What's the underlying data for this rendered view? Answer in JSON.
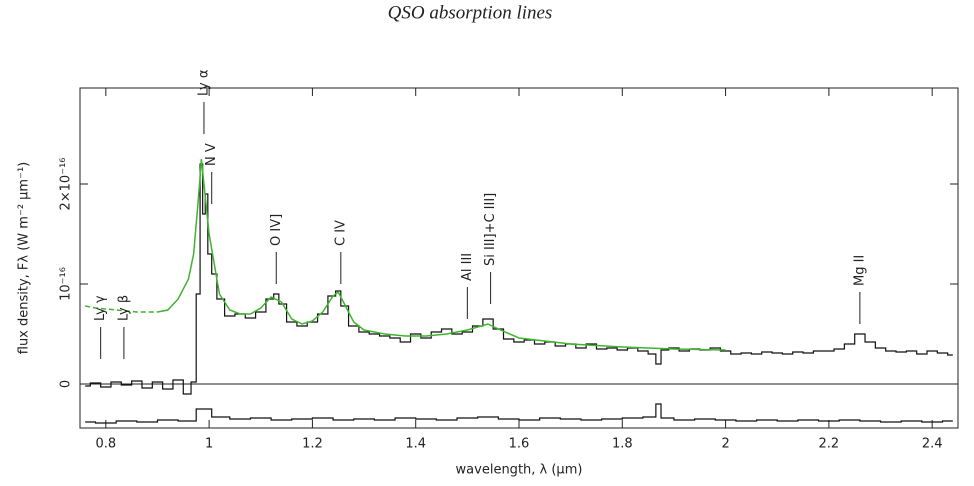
{
  "chart_data": {
    "type": "line",
    "title": "QSO absorption lines",
    "xlabel": "wavelength, λ (μm)",
    "ylabel": "flux density, Fλ (W m⁻² μm⁻¹)",
    "xlim": [
      0.75,
      2.45
    ],
    "ylim": [
      -4.4e-17,
      2.96e-16
    ],
    "xticks": [
      0.8,
      1,
      1.2,
      1.4,
      1.6,
      1.8,
      2,
      2.2,
      2.4
    ],
    "yticks": [
      0,
      {
        "value": 1e-16,
        "label": "10⁻¹⁶"
      },
      {
        "value": 2e-16,
        "label": "2×10⁻¹⁶"
      }
    ],
    "zero_line": true,
    "series": [
      {
        "color": "#111111",
        "linestyle": "steps",
        "x": [
          0.76,
          0.78,
          0.8,
          0.82,
          0.84,
          0.86,
          0.88,
          0.9,
          0.92,
          0.94,
          0.96,
          0.97,
          0.98,
          0.985,
          0.99,
          0.995,
          1.0,
          1.01,
          1.02,
          1.04,
          1.06,
          1.08,
          1.1,
          1.12,
          1.13,
          1.14,
          1.16,
          1.18,
          1.2,
          1.22,
          1.24,
          1.25,
          1.26,
          1.28,
          1.3,
          1.32,
          1.34,
          1.36,
          1.38,
          1.4,
          1.42,
          1.44,
          1.46,
          1.48,
          1.5,
          1.52,
          1.54,
          1.56,
          1.58,
          1.6,
          1.62,
          1.64,
          1.66,
          1.68,
          1.7,
          1.72,
          1.74,
          1.76,
          1.78,
          1.8,
          1.82,
          1.84,
          1.86,
          1.87,
          1.88,
          1.9,
          1.92,
          1.94,
          1.96,
          1.98,
          2.0,
          2.02,
          2.04,
          2.06,
          2.08,
          2.1,
          2.12,
          2.14,
          2.16,
          2.18,
          2.2,
          2.22,
          2.24,
          2.26,
          2.28,
          2.3,
          2.32,
          2.34,
          2.36,
          2.38,
          2.4,
          2.42,
          2.44
        ],
        "values": [
          -2e-18,
          1e-18,
          -3e-18,
          2e-18,
          -1e-18,
          3e-18,
          -4e-18,
          2e-18,
          -5e-18,
          4e-18,
          -1e-17,
          2e-18,
          9e-17,
          2.2e-16,
          1.7e-16,
          1.9e-16,
          1.3e-16,
          1.1e-16,
          8.5e-17,
          6.8e-17,
          7e-17,
          6.6e-17,
          7.2e-17,
          8.5e-17,
          9e-17,
          8e-17,
          6.2e-17,
          5.8e-17,
          6.2e-17,
          7e-17,
          8.8e-17,
          9.3e-17,
          7.8e-17,
          5.8e-17,
          5.2e-17,
          5e-17,
          4.8e-17,
          4.6e-17,
          4.2e-17,
          5e-17,
          4.6e-17,
          5.2e-17,
          5.5e-17,
          5e-17,
          5.2e-17,
          5.8e-17,
          6.5e-17,
          5.5e-17,
          4.5e-17,
          4.2e-17,
          4.4e-17,
          4e-17,
          4.2e-17,
          3.8e-17,
          4e-17,
          3.6e-17,
          4e-17,
          3.5e-17,
          3.6e-17,
          3.4e-17,
          3.6e-17,
          3.3e-17,
          3e-17,
          2e-17,
          3.4e-17,
          3.6e-17,
          3.3e-17,
          3.5e-17,
          3.4e-17,
          3.6e-17,
          3.3e-17,
          3e-17,
          3.1e-17,
          3e-17,
          3.2e-17,
          3.1e-17,
          3e-17,
          3.2e-17,
          3.1e-17,
          3.3e-17,
          3.3e-17,
          3.5e-17,
          4e-17,
          5e-17,
          4.2e-17,
          3.6e-17,
          3.3e-17,
          3.2e-17,
          3.3e-17,
          3e-17,
          3.3e-17,
          3.1e-17,
          2.9e-17
        ]
      },
      {
        "color": "#3fb52e",
        "linestyle": "dashed",
        "x": [
          0.76,
          0.78,
          0.8,
          0.82,
          0.84,
          0.86,
          0.88,
          0.9
        ],
        "values": [
          7.8e-17,
          7.6e-17,
          7.5e-17,
          7.4e-17,
          7.3e-17,
          7.2e-17,
          7.2e-17,
          7.2e-17
        ]
      },
      {
        "color": "#3fb52e",
        "linestyle": "solid",
        "x": [
          0.9,
          0.92,
          0.94,
          0.96,
          0.97,
          0.98,
          0.985,
          0.99,
          1.0,
          1.02,
          1.04,
          1.06,
          1.08,
          1.1,
          1.12,
          1.14,
          1.16,
          1.18,
          1.2,
          1.22,
          1.24,
          1.25,
          1.26,
          1.28,
          1.3,
          1.34,
          1.38,
          1.42,
          1.46,
          1.5,
          1.54,
          1.56,
          1.6,
          1.7,
          1.8,
          1.9,
          2.0
        ],
        "values": [
          7.2e-17,
          7.4e-17,
          8.5e-17,
          1.05e-16,
          1.3e-16,
          1.9e-16,
          2.25e-16,
          2e-16,
          1.5e-16,
          9e-17,
          7.4e-17,
          7e-17,
          7e-17,
          7.6e-17,
          8.7e-17,
          8.2e-17,
          6.5e-17,
          6e-17,
          6.3e-17,
          7.2e-17,
          8.8e-17,
          9.2e-17,
          8.2e-17,
          6.2e-17,
          5.4e-17,
          5e-17,
          4.8e-17,
          4.8e-17,
          5e-17,
          5.4e-17,
          6e-17,
          5.5e-17,
          4.6e-17,
          4e-17,
          3.7e-17,
          3.5e-17,
          3.4e-17
        ]
      },
      {
        "color": "#111111",
        "linestyle": "steps",
        "x": [
          0.76,
          0.8,
          0.84,
          0.88,
          0.92,
          0.96,
          0.99,
          1.02,
          1.06,
          1.1,
          1.14,
          1.18,
          1.22,
          1.26,
          1.3,
          1.34,
          1.38,
          1.42,
          1.46,
          1.5,
          1.54,
          1.58,
          1.62,
          1.66,
          1.7,
          1.74,
          1.78,
          1.82,
          1.86,
          1.87,
          1.88,
          1.92,
          1.96,
          2.0,
          2.04,
          2.08,
          2.12,
          2.16,
          2.2,
          2.24,
          2.28,
          2.32,
          2.36,
          2.4,
          2.44
        ],
        "values": [
          -3.8e-17,
          -3.9e-17,
          -3.7e-17,
          -3.8e-17,
          -3.6e-17,
          -3.7e-17,
          -2.5e-17,
          -3.3e-17,
          -3.5e-17,
          -3.4e-17,
          -3.6e-17,
          -3.5e-17,
          -3.4e-17,
          -3.6e-17,
          -3.5e-17,
          -3.6e-17,
          -3.4e-17,
          -3.5e-17,
          -3.6e-17,
          -3.4e-17,
          -3.3e-17,
          -3.5e-17,
          -3.6e-17,
          -3.4e-17,
          -3.5e-17,
          -3.6e-17,
          -3.5e-17,
          -3.4e-17,
          -3.3e-17,
          -2e-17,
          -3.4e-17,
          -3.6e-17,
          -3.5e-17,
          -3.6e-17,
          -3.7e-17,
          -3.6e-17,
          -3.7e-17,
          -3.6e-17,
          -3.7e-17,
          -3.6e-17,
          -3.7e-17,
          -3.8e-17,
          -3.7e-17,
          -3.8e-17,
          -3.7e-17
        ]
      }
    ],
    "annotations": [
      {
        "text": "Ly γ",
        "x": 0.79,
        "y": 2.5e-17
      },
      {
        "text": "Ly β",
        "x": 0.835,
        "y": 2.5e-17
      },
      {
        "text": "Ly α",
        "x": 0.99,
        "y": 2.5e-16
      },
      {
        "text": "N V",
        "x": 1.005,
        "y": 1.8e-16
      },
      {
        "text": "O IV]",
        "x": 1.13,
        "y": 1e-16
      },
      {
        "text": "C IV",
        "x": 1.255,
        "y": 1e-16
      },
      {
        "text": "Al III",
        "x": 1.5,
        "y": 6.5e-17
      },
      {
        "text": "Si III]+C III]",
        "x": 1.545,
        "y": 8e-17
      },
      {
        "text": "Mg II",
        "x": 2.26,
        "y": 6e-17
      }
    ]
  }
}
